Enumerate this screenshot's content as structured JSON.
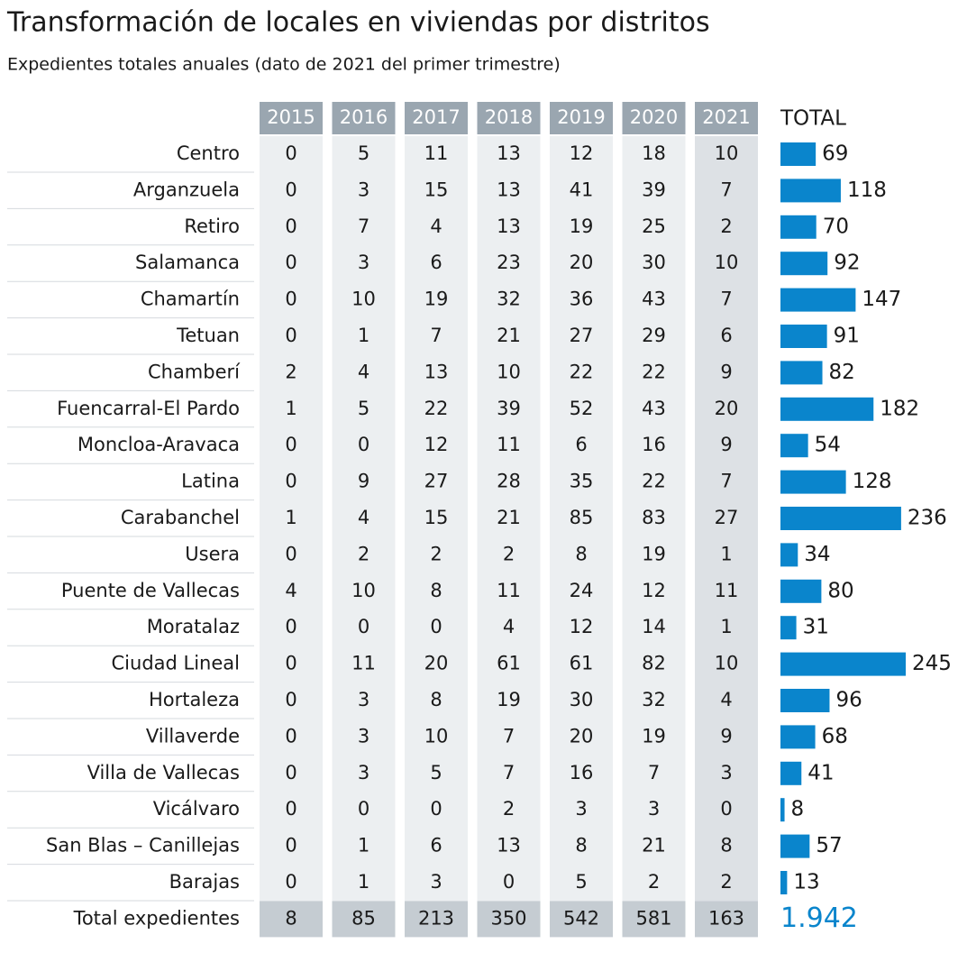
{
  "title": "Transformación de locales en viviendas por distritos",
  "subtitle": "Expedientes totales anuales (dato de 2021 del primer trimestre)",
  "years": [
    "2015",
    "2016",
    "2017",
    "2018",
    "2019",
    "2020",
    "2021"
  ],
  "total_header": "TOTAL",
  "rows": [
    {
      "name": "Centro",
      "values": [
        0,
        5,
        11,
        13,
        12,
        18,
        10
      ],
      "total": 69
    },
    {
      "name": "Arganzuela",
      "values": [
        0,
        3,
        15,
        13,
        41,
        39,
        7
      ],
      "total": 118
    },
    {
      "name": "Retiro",
      "values": [
        0,
        7,
        4,
        13,
        19,
        25,
        2
      ],
      "total": 70
    },
    {
      "name": "Salamanca",
      "values": [
        0,
        3,
        6,
        23,
        20,
        30,
        10
      ],
      "total": 92
    },
    {
      "name": "Chamartín",
      "values": [
        0,
        10,
        19,
        32,
        36,
        43,
        7
      ],
      "total": 147
    },
    {
      "name": "Tetuan",
      "values": [
        0,
        1,
        7,
        21,
        27,
        29,
        6
      ],
      "total": 91
    },
    {
      "name": "Chamberí",
      "values": [
        2,
        4,
        13,
        10,
        22,
        22,
        9
      ],
      "total": 82
    },
    {
      "name": "Fuencarral-El Pardo",
      "values": [
        1,
        5,
        22,
        39,
        52,
        43,
        20
      ],
      "total": 182
    },
    {
      "name": "Moncloa-Aravaca",
      "values": [
        0,
        0,
        12,
        11,
        6,
        16,
        9
      ],
      "total": 54
    },
    {
      "name": "Latina",
      "values": [
        0,
        9,
        27,
        28,
        35,
        22,
        7
      ],
      "total": 128
    },
    {
      "name": "Carabanchel",
      "values": [
        1,
        4,
        15,
        21,
        85,
        83,
        27
      ],
      "total": 236
    },
    {
      "name": "Usera",
      "values": [
        0,
        2,
        2,
        2,
        8,
        19,
        1
      ],
      "total": 34
    },
    {
      "name": "Puente de Vallecas",
      "values": [
        4,
        10,
        8,
        11,
        24,
        12,
        11
      ],
      "total": 80
    },
    {
      "name": "Moratalaz",
      "values": [
        0,
        0,
        0,
        4,
        12,
        14,
        1
      ],
      "total": 31
    },
    {
      "name": "Ciudad Lineal",
      "values": [
        0,
        11,
        20,
        61,
        61,
        82,
        10
      ],
      "total": 245
    },
    {
      "name": "Hortaleza",
      "values": [
        0,
        3,
        8,
        19,
        30,
        32,
        4
      ],
      "total": 96
    },
    {
      "name": "Villaverde",
      "values": [
        0,
        3,
        10,
        7,
        20,
        19,
        9
      ],
      "total": 68
    },
    {
      "name": "Villa de Vallecas",
      "values": [
        0,
        3,
        5,
        7,
        16,
        7,
        3
      ],
      "total": 41
    },
    {
      "name": "Vicálvaro",
      "values": [
        0,
        0,
        0,
        2,
        3,
        3,
        0
      ],
      "total": 8
    },
    {
      "name": "San Blas – Canillejas",
      "values": [
        0,
        1,
        6,
        13,
        8,
        21,
        8
      ],
      "total": 57
    },
    {
      "name": "Barajas",
      "values": [
        0,
        1,
        3,
        0,
        5,
        2,
        2
      ],
      "total": 13
    }
  ],
  "footer": {
    "name": "Total expedientes",
    "values": [
      8,
      85,
      213,
      350,
      542,
      581,
      163
    ],
    "total": {
      "value": 1942,
      "label": "1.942"
    }
  },
  "bar_color": "#0a85cc"
}
